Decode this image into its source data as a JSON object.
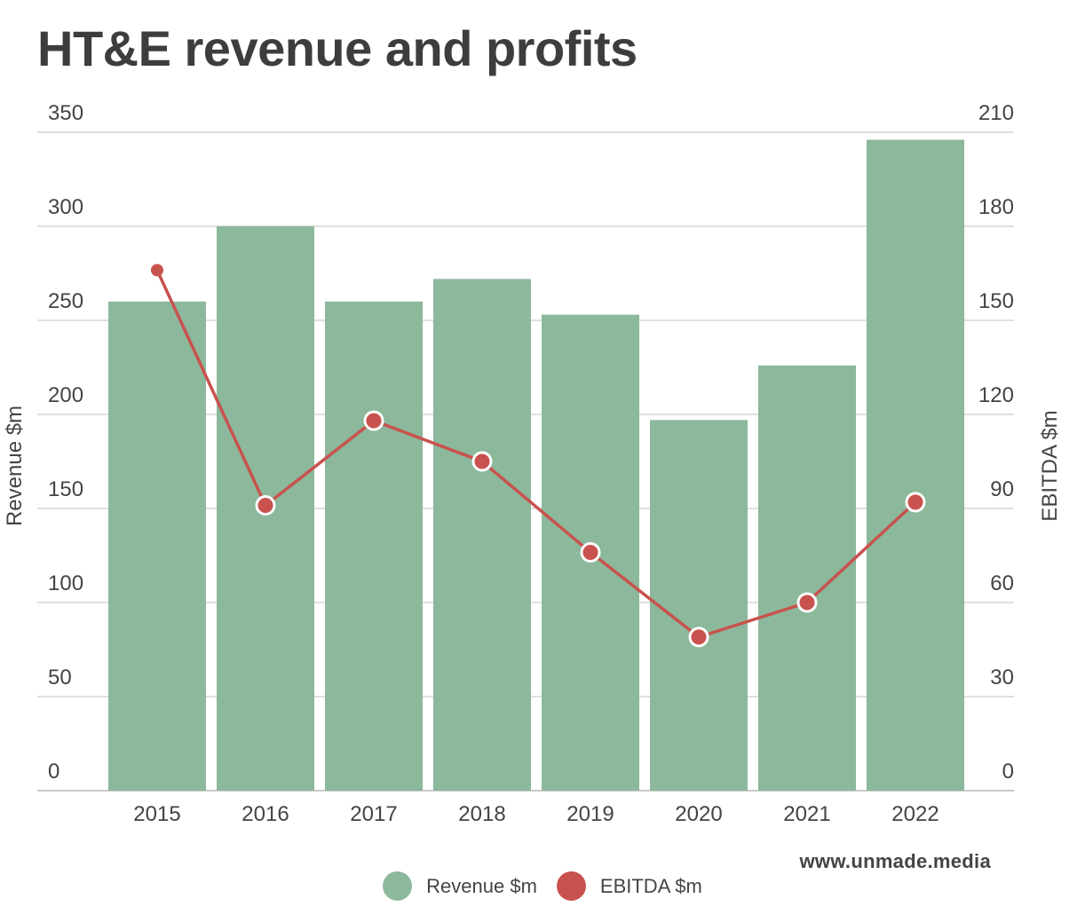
{
  "chart_data": {
    "type": "bar",
    "title": "HT&E revenue and profits",
    "categories": [
      "2015",
      "2016",
      "2017",
      "2018",
      "2019",
      "2020",
      "2021",
      "2022"
    ],
    "series": [
      {
        "name": "Revenue $m",
        "type": "bar",
        "axis": "left",
        "color": "#8cb89b",
        "values": [
          260,
          300,
          260,
          272,
          253,
          197,
          226,
          346
        ]
      },
      {
        "name": "EBITDA $m",
        "type": "line",
        "axis": "right",
        "color": "#c8524e",
        "values": [
          166,
          91,
          118,
          105,
          76,
          49,
          60,
          92
        ]
      }
    ],
    "ylabel": "Revenue $m",
    "ylim": [
      0,
      350
    ],
    "yticks": [
      "0",
      "50",
      "100",
      "150",
      "200",
      "250",
      "300",
      "350"
    ],
    "y2label": "EBITDA $m",
    "y2lim": [
      0,
      210
    ],
    "y2ticks": [
      "0",
      "30",
      "60",
      "90",
      "120",
      "150",
      "180",
      "210"
    ],
    "grid": true,
    "legend_position": "bottom-center"
  },
  "credit": "www.unmade.media"
}
